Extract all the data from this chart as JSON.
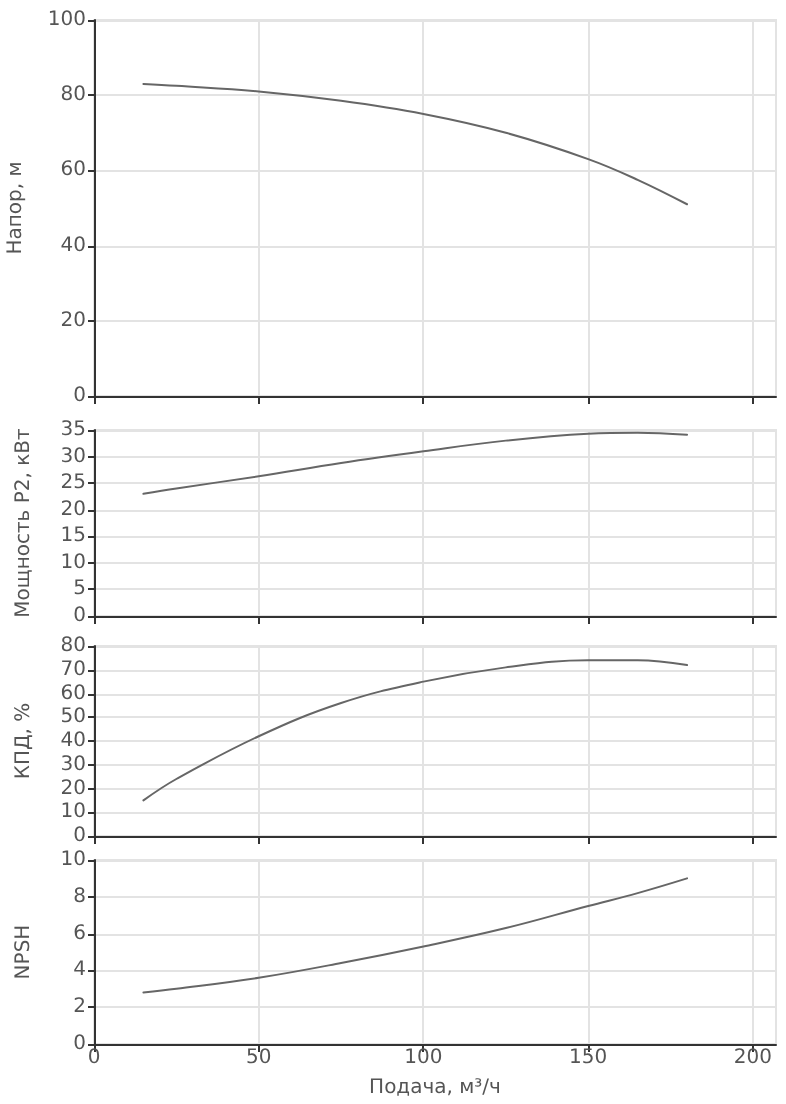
{
  "chart_data": [
    {
      "type": "line",
      "ylabel": "Напор, м",
      "x": [
        15,
        25,
        50,
        75,
        100,
        125,
        150,
        165,
        180
      ],
      "series": [
        {
          "color": "#666666",
          "values": [
            83,
            82.5,
            81,
            78.5,
            75,
            70,
            63,
            57.5,
            51
          ]
        }
      ],
      "xlim": [
        0,
        207
      ],
      "xticks": [
        0,
        50,
        100,
        150,
        200
      ],
      "ylim": [
        0,
        100
      ],
      "yticks": [
        0,
        20,
        40,
        60,
        80,
        100
      ],
      "grid": true,
      "marker": "none",
      "line_style": "solid",
      "tick_labels": "y"
    },
    {
      "type": "line",
      "ylabel": "Мощность P2, кВт",
      "x": [
        15,
        25,
        50,
        75,
        100,
        125,
        150,
        165,
        180
      ],
      "series": [
        {
          "color": "#666666",
          "values": [
            23,
            24,
            26.3,
            28.8,
            31,
            33,
            34.3,
            34.5,
            34.1
          ]
        }
      ],
      "xlim": [
        0,
        207
      ],
      "xticks": [
        0,
        50,
        100,
        150,
        200
      ],
      "ylim": [
        0,
        35
      ],
      "yticks": [
        0,
        5,
        10,
        15,
        20,
        25,
        30,
        35
      ],
      "grid": true,
      "marker": "none",
      "line_style": "solid",
      "tick_labels": "y"
    },
    {
      "type": "line",
      "ylabel": "КПД, %",
      "x": [
        15,
        25,
        50,
        75,
        100,
        125,
        150,
        165,
        180
      ],
      "series": [
        {
          "color": "#666666",
          "values": [
            15,
            24,
            42,
            56,
            65,
            71,
            74,
            74,
            72
          ]
        }
      ],
      "xlim": [
        0,
        207
      ],
      "xticks": [
        0,
        50,
        100,
        150,
        200
      ],
      "ylim": [
        0,
        80
      ],
      "yticks": [
        0,
        10,
        20,
        30,
        40,
        50,
        60,
        70,
        80
      ],
      "grid": true,
      "marker": "none",
      "line_style": "solid",
      "tick_labels": "y"
    },
    {
      "type": "line",
      "ylabel": "NPSH",
      "xlabel": "Подача, м³/ч",
      "x": [
        15,
        25,
        50,
        75,
        100,
        125,
        150,
        165,
        180
      ],
      "series": [
        {
          "color": "#666666",
          "values": [
            2.8,
            3.0,
            3.6,
            4.4,
            5.3,
            6.3,
            7.5,
            8.2,
            9
          ]
        }
      ],
      "xlim": [
        0,
        207
      ],
      "xticks": [
        0,
        50,
        100,
        150,
        200
      ],
      "ylim": [
        0,
        10
      ],
      "yticks": [
        0,
        2,
        4,
        6,
        8,
        10
      ],
      "grid": true,
      "marker": "none",
      "line_style": "solid"
    }
  ]
}
